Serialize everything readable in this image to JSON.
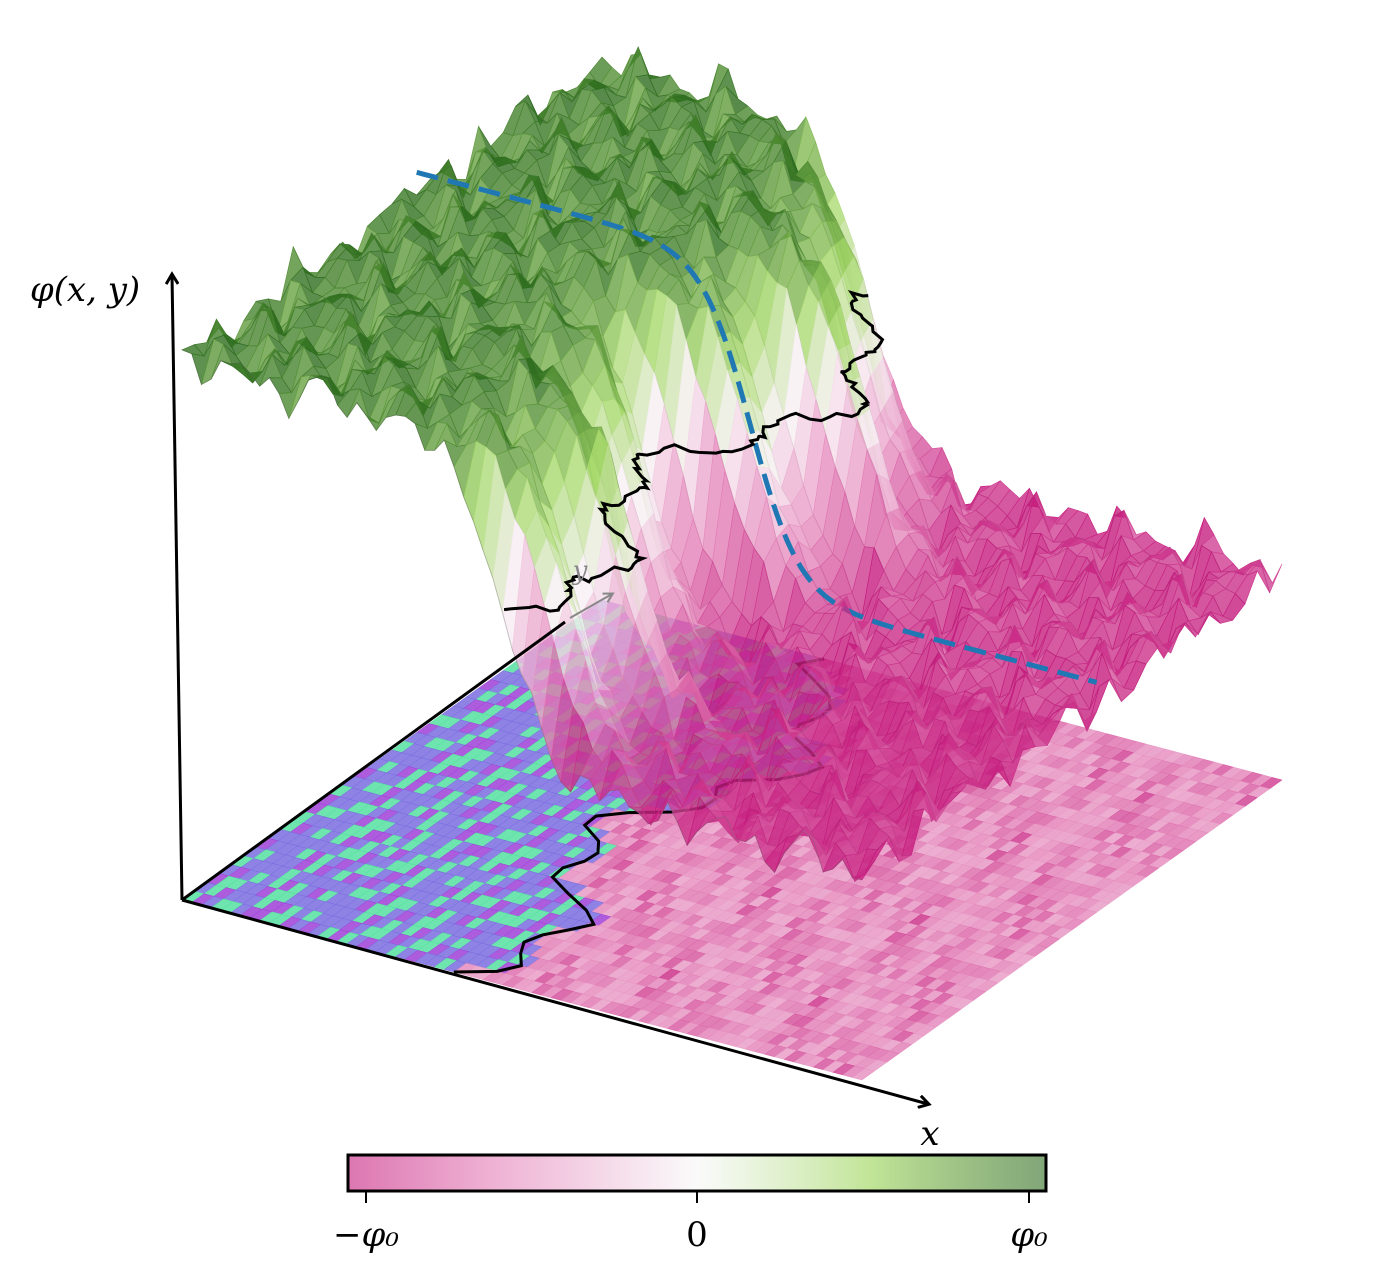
{
  "axes": {
    "vertical_label": "φ(x, y)",
    "x_label": "x",
    "y_label": "y"
  },
  "colorbar": {
    "ticks": [
      "−φ₀",
      "0",
      "φ₀"
    ]
  }
}
